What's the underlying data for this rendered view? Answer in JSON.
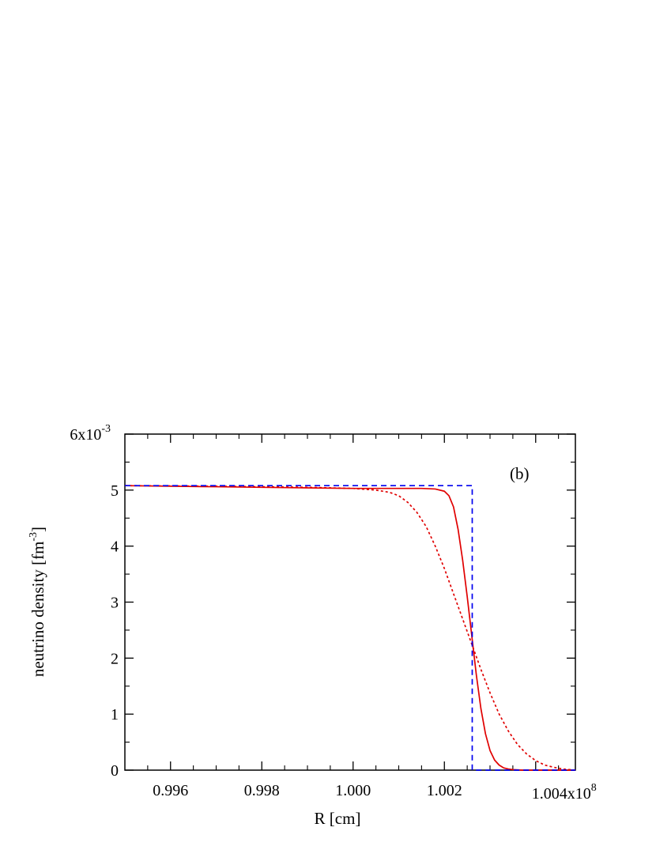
{
  "chart_data": {
    "type": "line",
    "title": "",
    "xlabel": "R [cm]",
    "ylabel_main": "neutrino density [fm",
    "ylabel_sup": "-3",
    "ylabel_close": "]",
    "annotation": "(b)",
    "xlim": [
      0.995,
      1.00487
    ],
    "ylim": [
      0,
      6
    ],
    "x_ticks": [
      0.996,
      0.998,
      1.0,
      1.002,
      1.004
    ],
    "x_tick_labels": [
      "0.996",
      "0.998",
      "1.000",
      "1.002",
      "1.004x10"
    ],
    "x_tick_exponent": "8",
    "y_ticks": [
      0,
      1,
      2,
      3,
      4,
      5,
      6
    ],
    "y_tick_labels": [
      "0",
      "1",
      "2",
      "3",
      "4",
      "5",
      "6x10"
    ],
    "y_tick_exponent": "-3",
    "grid": false,
    "series": [
      {
        "style": "solid",
        "color": "#e00000",
        "x": [
          0.995,
          0.996,
          0.997,
          0.998,
          0.999,
          1.0,
          1.001,
          1.0015,
          1.0018,
          1.002,
          1.0021,
          1.0022,
          1.0023,
          1.0024,
          1.0025,
          1.0026,
          1.0027,
          1.0028,
          1.0029,
          1.003,
          1.0031,
          1.0032,
          1.0033,
          1.0034,
          1.0035,
          1.0037,
          1.00487
        ],
        "y": [
          5.08,
          5.07,
          5.06,
          5.05,
          5.04,
          5.03,
          5.03,
          5.03,
          5.02,
          4.98,
          4.9,
          4.7,
          4.3,
          3.75,
          3.1,
          2.4,
          1.7,
          1.1,
          0.65,
          0.35,
          0.18,
          0.09,
          0.04,
          0.02,
          0.01,
          0.0,
          0.0
        ]
      },
      {
        "style": "dotted",
        "color": "#e00000",
        "x": [
          0.995,
          0.997,
          0.999,
          1.0,
          1.0005,
          1.0008,
          1.001,
          1.0012,
          1.0014,
          1.0016,
          1.0018,
          1.002,
          1.0022,
          1.0024,
          1.0026,
          1.0028,
          1.003,
          1.0032,
          1.0034,
          1.0036,
          1.0038,
          1.004,
          1.0042,
          1.0044,
          1.0046,
          1.00487
        ],
        "y": [
          5.08,
          5.07,
          5.05,
          5.03,
          5.0,
          4.96,
          4.9,
          4.78,
          4.6,
          4.35,
          4.0,
          3.6,
          3.15,
          2.7,
          2.25,
          1.8,
          1.38,
          1.0,
          0.7,
          0.46,
          0.29,
          0.17,
          0.09,
          0.05,
          0.02,
          0.0
        ]
      },
      {
        "style": "dashed",
        "color": "#0000ee",
        "x": [
          0.995,
          1.00261,
          1.00261,
          1.00487
        ],
        "y": [
          5.08,
          5.08,
          0.0,
          0.0
        ]
      }
    ]
  }
}
